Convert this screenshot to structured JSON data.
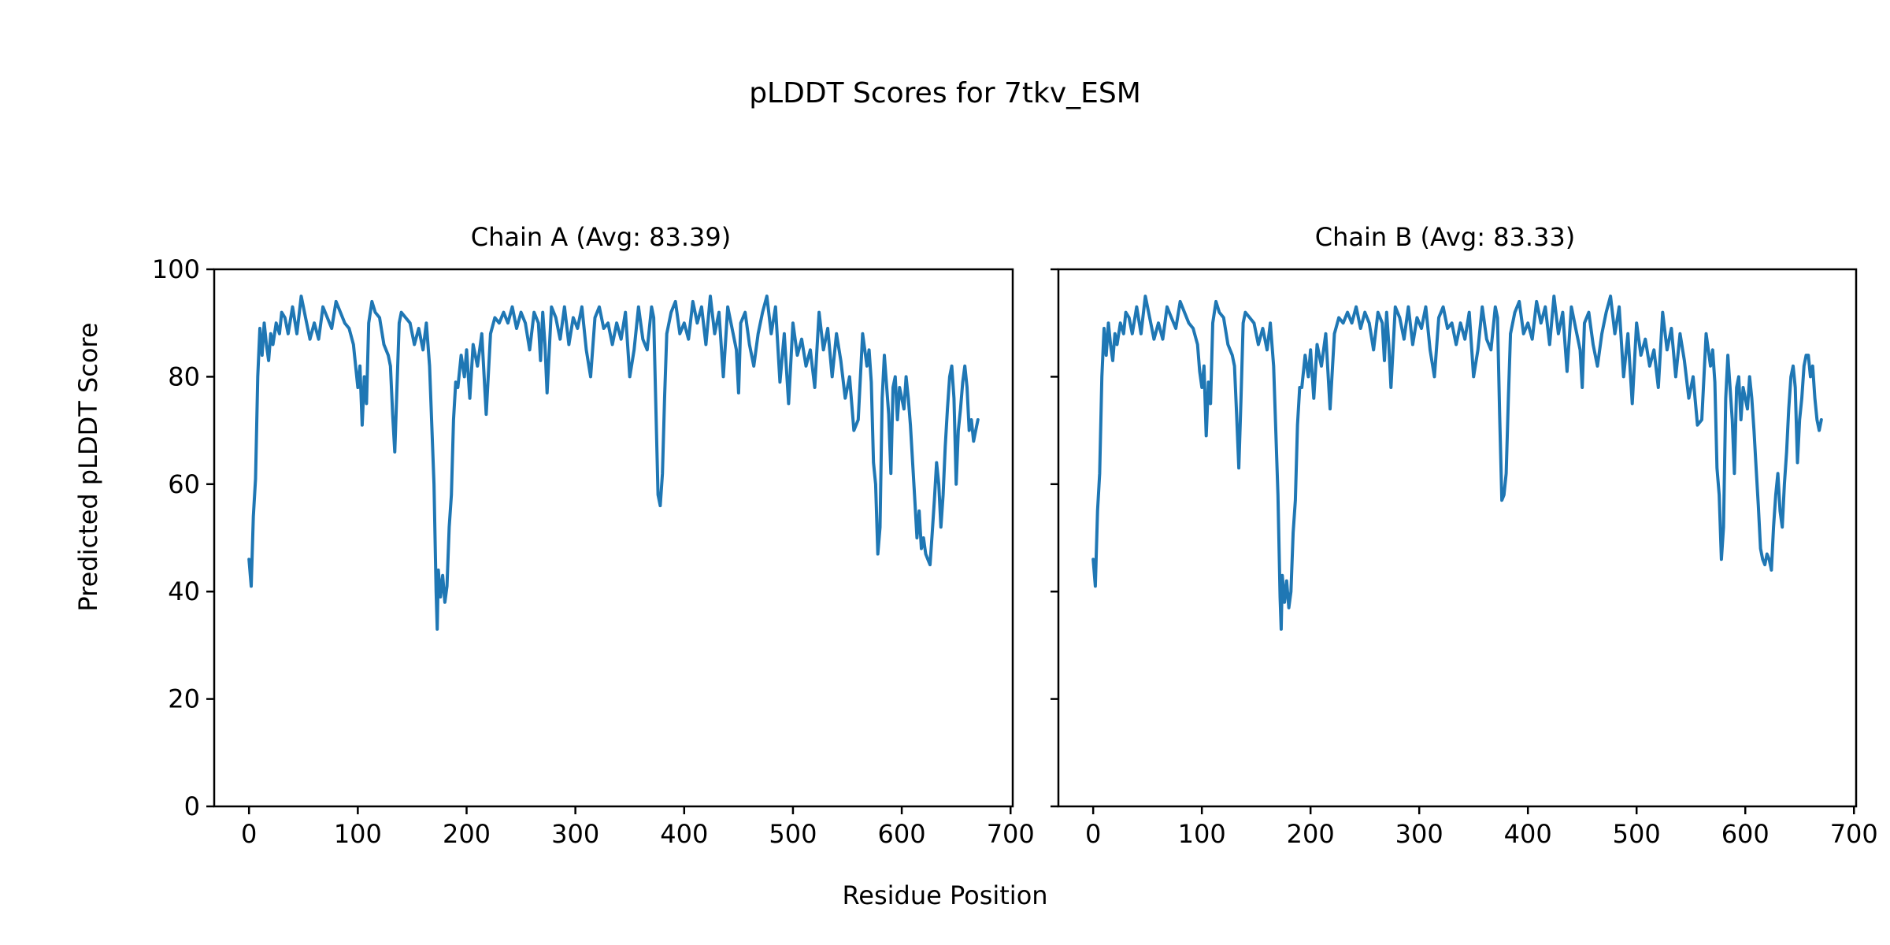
{
  "figure": {
    "title": "pLDDT Scores for 7tkv_ESM",
    "xlabel": "Residue Position",
    "ylabel": "Predicted pLDDT Score"
  },
  "chart_data": [
    {
      "type": "line",
      "title": "Chain A (Avg: 83.39)",
      "xlim": [
        -32,
        702
      ],
      "ylim": [
        0,
        100
      ],
      "xticks": [
        0,
        100,
        200,
        300,
        400,
        500,
        600,
        700
      ],
      "yticks": [
        0,
        20,
        40,
        60,
        80,
        100
      ],
      "color": "#1f77b4",
      "x": [
        0,
        2,
        4,
        6,
        8,
        10,
        12,
        14,
        16,
        18,
        20,
        22,
        25,
        28,
        30,
        33,
        36,
        40,
        44,
        48,
        52,
        56,
        60,
        64,
        68,
        72,
        76,
        80,
        84,
        88,
        92,
        96,
        98,
        100,
        102,
        104,
        106,
        108,
        110,
        113,
        116,
        120,
        124,
        128,
        130,
        132,
        134,
        136,
        138,
        140,
        144,
        148,
        152,
        156,
        160,
        163,
        166,
        170,
        172,
        173,
        174,
        176,
        178,
        180,
        182,
        184,
        186,
        188,
        190,
        192,
        195,
        198,
        200,
        203,
        206,
        210,
        214,
        218,
        222,
        226,
        230,
        234,
        238,
        242,
        246,
        250,
        254,
        258,
        262,
        266,
        268,
        270,
        272,
        274,
        278,
        282,
        286,
        290,
        294,
        298,
        302,
        306,
        310,
        314,
        318,
        322,
        326,
        330,
        334,
        338,
        342,
        346,
        350,
        354,
        358,
        362,
        366,
        370,
        372,
        374,
        376,
        378,
        380,
        382,
        384,
        388,
        392,
        396,
        400,
        404,
        408,
        412,
        416,
        420,
        424,
        428,
        432,
        436,
        440,
        444,
        448,
        450,
        452,
        456,
        460,
        464,
        468,
        472,
        476,
        480,
        484,
        488,
        492,
        496,
        500,
        504,
        508,
        512,
        516,
        520,
        524,
        528,
        532,
        536,
        540,
        544,
        548,
        552,
        556,
        560,
        564,
        568,
        570,
        572,
        574,
        576,
        578,
        580,
        582,
        584,
        588,
        590,
        592,
        594,
        596,
        598,
        600,
        602,
        604,
        606,
        608,
        610,
        612,
        614,
        616,
        618,
        620,
        622,
        624,
        626,
        628,
        630,
        632,
        634,
        636,
        638,
        640,
        642,
        644,
        646,
        648,
        650,
        652,
        654,
        656,
        658,
        660,
        662,
        664,
        666,
        668,
        670
      ],
      "y": [
        46,
        41,
        54,
        61,
        80,
        89,
        84,
        90,
        86,
        83,
        88,
        86,
        90,
        88,
        92,
        91,
        88,
        93,
        88,
        95,
        91,
        87,
        90,
        87,
        93,
        91,
        89,
        94,
        92,
        90,
        89,
        86,
        82,
        78,
        82,
        71,
        80,
        75,
        90,
        94,
        92,
        91,
        86,
        84,
        82,
        73,
        66,
        78,
        90,
        92,
        91,
        90,
        86,
        89,
        85,
        90,
        82,
        60,
        40,
        33,
        44,
        39,
        43,
        38,
        41,
        52,
        58,
        72,
        79,
        78,
        84,
        80,
        85,
        76,
        86,
        82,
        88,
        73,
        88,
        91,
        90,
        92,
        90,
        93,
        89,
        92,
        90,
        85,
        92,
        90,
        83,
        92,
        86,
        77,
        93,
        91,
        87,
        93,
        86,
        91,
        89,
        93,
        85,
        80,
        91,
        93,
        89,
        90,
        86,
        90,
        87,
        92,
        80,
        85,
        93,
        87,
        85,
        93,
        91,
        74,
        58,
        56,
        62,
        76,
        88,
        92,
        94,
        88,
        90,
        87,
        94,
        90,
        93,
        86,
        95,
        88,
        92,
        80,
        93,
        89,
        85,
        77,
        90,
        92,
        86,
        82,
        88,
        92,
        95,
        88,
        93,
        79,
        88,
        75,
        90,
        84,
        87,
        82,
        85,
        78,
        92,
        85,
        89,
        80,
        88,
        83,
        76,
        80,
        70,
        72,
        88,
        82,
        85,
        79,
        64,
        60,
        47,
        52,
        76,
        84,
        73,
        62,
        78,
        80,
        72,
        78,
        76,
        74,
        80,
        76,
        71,
        64,
        57,
        50,
        55,
        48,
        50,
        47,
        46,
        45,
        51,
        57,
        64,
        60,
        52,
        58,
        67,
        74,
        80,
        82,
        76,
        60,
        70,
        74,
        79,
        82,
        78,
        70,
        72,
        68,
        70,
        72
      ]
    },
    {
      "type": "line",
      "title": "Chain B (Avg: 83.33)",
      "xlim": [
        -32,
        702
      ],
      "ylim": [
        0,
        100
      ],
      "xticks": [
        0,
        100,
        200,
        300,
        400,
        500,
        600,
        700
      ],
      "yticks": [
        0,
        20,
        40,
        60,
        80,
        100
      ],
      "color": "#1f77b4",
      "x": [
        0,
        2,
        4,
        6,
        8,
        10,
        12,
        14,
        16,
        18,
        20,
        22,
        25,
        28,
        30,
        33,
        36,
        40,
        44,
        48,
        52,
        56,
        60,
        64,
        68,
        72,
        76,
        80,
        84,
        88,
        92,
        96,
        98,
        100,
        102,
        104,
        106,
        108,
        110,
        113,
        116,
        120,
        124,
        128,
        130,
        132,
        134,
        136,
        138,
        140,
        144,
        148,
        152,
        156,
        160,
        163,
        166,
        170,
        172,
        173,
        174,
        176,
        178,
        180,
        182,
        184,
        186,
        188,
        190,
        192,
        195,
        198,
        200,
        203,
        206,
        210,
        214,
        218,
        222,
        226,
        230,
        234,
        238,
        242,
        246,
        250,
        254,
        258,
        262,
        266,
        268,
        270,
        272,
        274,
        278,
        282,
        286,
        290,
        294,
        298,
        302,
        306,
        310,
        314,
        318,
        322,
        326,
        330,
        334,
        338,
        342,
        346,
        350,
        354,
        358,
        362,
        366,
        370,
        372,
        374,
        376,
        378,
        380,
        382,
        384,
        388,
        392,
        396,
        400,
        404,
        408,
        412,
        416,
        420,
        424,
        428,
        432,
        436,
        440,
        444,
        448,
        450,
        452,
        456,
        460,
        464,
        468,
        472,
        476,
        480,
        484,
        488,
        492,
        496,
        500,
        504,
        508,
        512,
        516,
        520,
        524,
        528,
        532,
        536,
        540,
        544,
        548,
        552,
        556,
        560,
        564,
        568,
        570,
        572,
        574,
        576,
        578,
        580,
        582,
        584,
        588,
        590,
        592,
        594,
        596,
        598,
        600,
        602,
        604,
        606,
        608,
        610,
        612,
        614,
        616,
        618,
        620,
        622,
        624,
        626,
        628,
        630,
        632,
        634,
        636,
        638,
        640,
        642,
        644,
        646,
        648,
        650,
        652,
        654,
        656,
        658,
        660,
        662,
        664,
        666,
        668,
        670
      ],
      "y": [
        46,
        41,
        55,
        62,
        80,
        89,
        84,
        90,
        86,
        83,
        88,
        86,
        90,
        88,
        92,
        91,
        88,
        93,
        88,
        95,
        91,
        87,
        90,
        87,
        93,
        91,
        89,
        94,
        92,
        90,
        89,
        86,
        81,
        78,
        82,
        69,
        79,
        75,
        90,
        94,
        92,
        91,
        86,
        84,
        82,
        73,
        63,
        76,
        90,
        92,
        91,
        90,
        86,
        89,
        85,
        90,
        82,
        58,
        39,
        33,
        43,
        38,
        42,
        37,
        40,
        51,
        57,
        71,
        78,
        78,
        84,
        80,
        85,
        76,
        86,
        82,
        88,
        74,
        88,
        91,
        90,
        92,
        90,
        93,
        89,
        92,
        90,
        85,
        92,
        90,
        83,
        92,
        86,
        78,
        93,
        91,
        87,
        93,
        86,
        91,
        89,
        93,
        85,
        80,
        91,
        93,
        89,
        90,
        86,
        90,
        87,
        92,
        80,
        85,
        93,
        87,
        85,
        93,
        91,
        73,
        57,
        58,
        62,
        76,
        88,
        92,
        94,
        88,
        90,
        87,
        94,
        90,
        93,
        86,
        95,
        88,
        92,
        81,
        93,
        89,
        85,
        78,
        90,
        92,
        86,
        82,
        88,
        92,
        95,
        88,
        93,
        80,
        88,
        75,
        90,
        84,
        87,
        82,
        85,
        78,
        92,
        85,
        89,
        80,
        88,
        83,
        76,
        80,
        71,
        72,
        88,
        82,
        85,
        79,
        63,
        58,
        46,
        52,
        76,
        84,
        72,
        62,
        78,
        80,
        72,
        78,
        76,
        74,
        80,
        76,
        70,
        63,
        56,
        48,
        46,
        45,
        47,
        46,
        44,
        52,
        58,
        62,
        55,
        52,
        60,
        66,
        74,
        80,
        82,
        78,
        64,
        72,
        76,
        82,
        84,
        84,
        80,
        82,
        76,
        72,
        70,
        72
      ]
    }
  ]
}
